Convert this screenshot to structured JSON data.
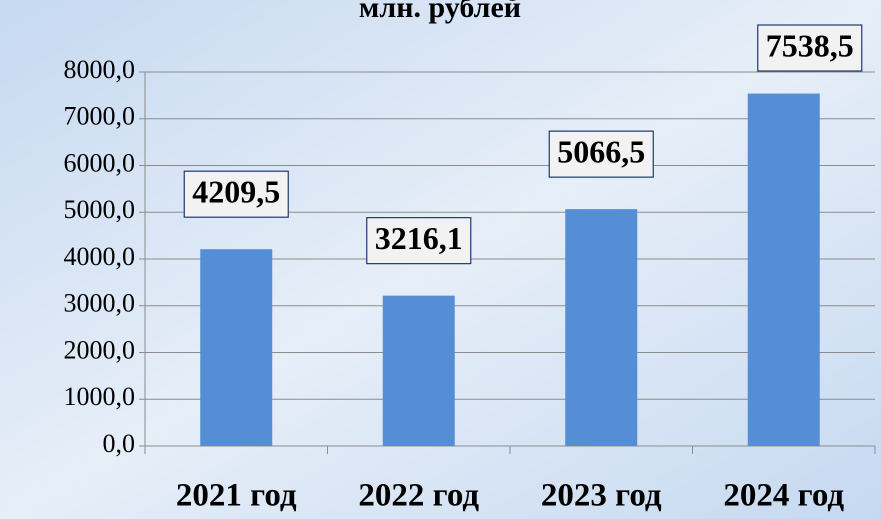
{
  "chart_data": {
    "type": "bar",
    "title": "млн. рублей",
    "categories": [
      "2021 год",
      "2022 год",
      "2023 год",
      "2024 год"
    ],
    "values": [
      4209.5,
      3216.1,
      5066.5,
      7538.5
    ],
    "value_labels": [
      "4209,5",
      "3216,1",
      "5066,5",
      "7538,5"
    ],
    "color": "#558ed5",
    "ylim": [
      0,
      8000
    ],
    "yticks": [
      {
        "value": 0,
        "label": "0,0"
      },
      {
        "value": 1000,
        "label": "1000,0"
      },
      {
        "value": 2000,
        "label": "2000,0"
      },
      {
        "value": 3000,
        "label": "3000,0"
      },
      {
        "value": 4000,
        "label": "4000,0"
      },
      {
        "value": 5000,
        "label": "5000,0"
      },
      {
        "value": 6000,
        "label": "6000,0"
      },
      {
        "value": 7000,
        "label": "7000,0"
      },
      {
        "value": 8000,
        "label": "8000,0"
      }
    ],
    "grid": true
  }
}
